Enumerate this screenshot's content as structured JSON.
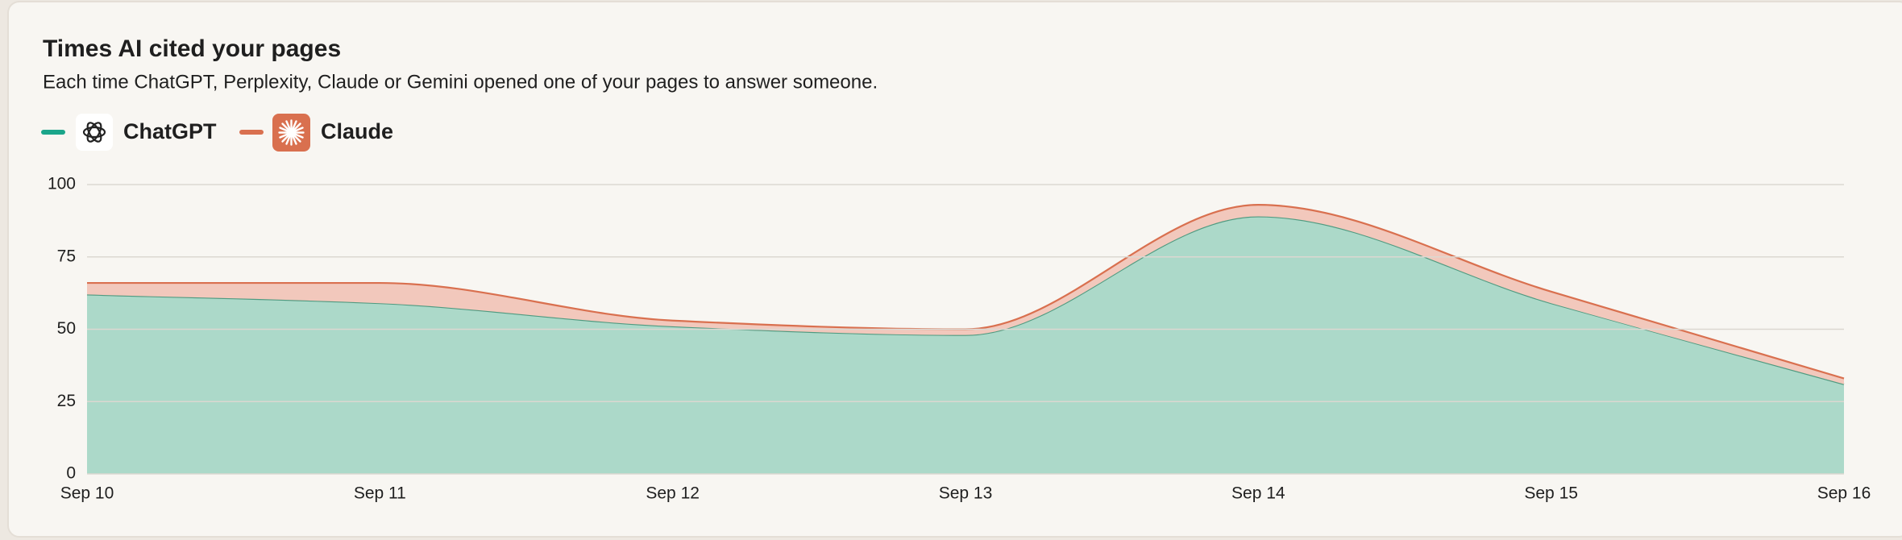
{
  "chart_data": {
    "type": "stacked-area",
    "title": "Times AI cited your pages",
    "subtitle": "Each time ChatGPT, Perplexity, Claude or Gemini opened one of your pages to answer someone.",
    "categories": [
      "Sep 10",
      "Sep 11",
      "Sep 12",
      "Sep 13",
      "Sep 14",
      "Sep 15",
      "Sep 16"
    ],
    "series": [
      {
        "name": "ChatGPT",
        "color": "#1aa58a",
        "fill": "#acd9c9",
        "line": "#4f9a80",
        "values": [
          62,
          59,
          51,
          48,
          89,
          59,
          31
        ]
      },
      {
        "name": "Claude",
        "color": "#d9704f",
        "fill": "#f2c8bc",
        "line": "#d9704f",
        "values": [
          4,
          7,
          2,
          2,
          4,
          4,
          2
        ]
      }
    ],
    "ylim": [
      0,
      100
    ],
    "yticks": [
      0,
      25,
      50,
      75,
      100
    ],
    "grid": true
  }
}
